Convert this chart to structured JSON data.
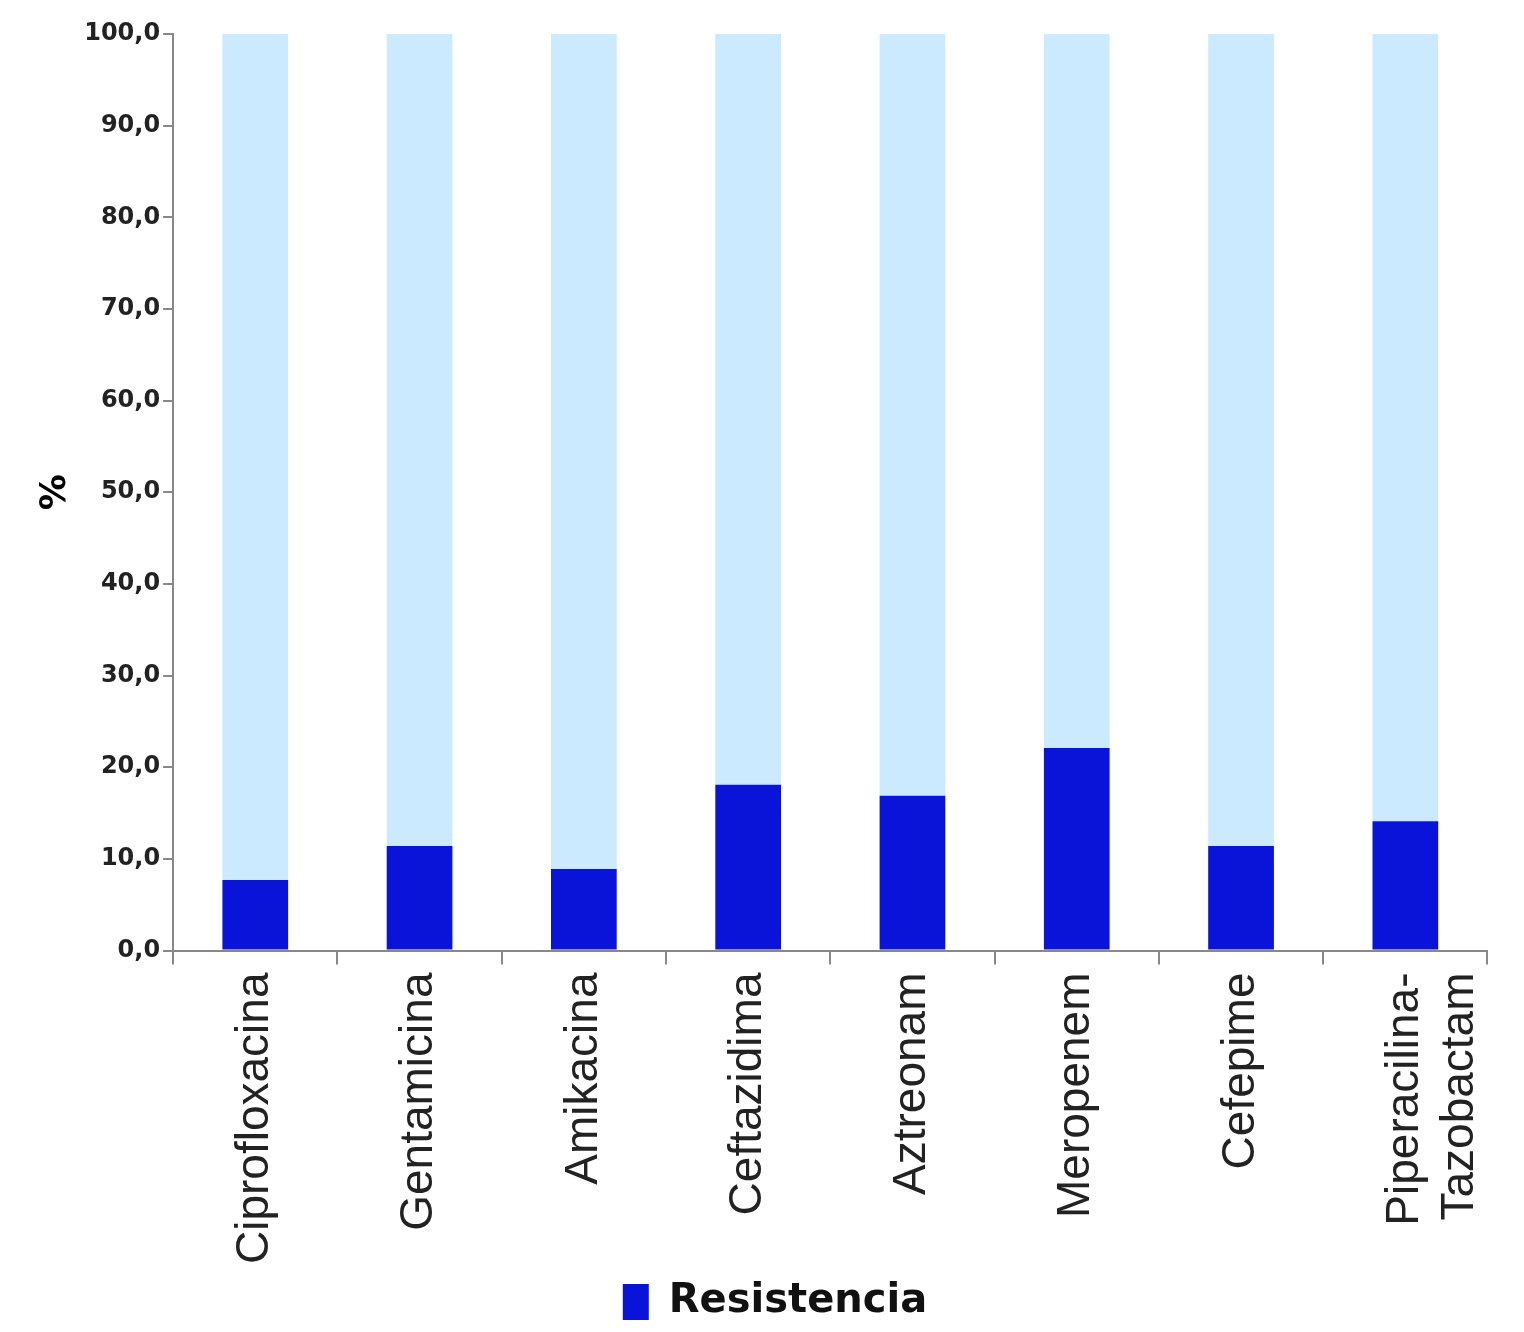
{
  "chart_data": {
    "type": "bar",
    "stacked": true,
    "ylabel": "%",
    "categories": [
      "Ciprofloxacina",
      "Gentamicina",
      "Amikacina",
      "Ceftazidima",
      "Aztreonam",
      "Meropenem",
      "Cefepime",
      "Piperacilina-Tazobactam"
    ],
    "series": [
      {
        "name": "Resistencia",
        "color": "#0a14d8",
        "values": [
          7.7,
          11.4,
          8.9,
          18.1,
          16.9,
          22.1,
          11.4,
          14.1
        ]
      },
      {
        "color": "#cceaff",
        "values": [
          92.3,
          88.6,
          91.1,
          81.9,
          83.1,
          77.9,
          88.6,
          85.9
        ]
      }
    ],
    "ylim": [
      0,
      100
    ],
    "yticks": [
      {
        "value": 0,
        "label": "0,0"
      },
      {
        "value": 10,
        "label": "10,0"
      },
      {
        "value": 20,
        "label": "20,0"
      },
      {
        "value": 30,
        "label": "30,0"
      },
      {
        "value": 40,
        "label": "40,0"
      },
      {
        "value": 50,
        "label": "50,0"
      },
      {
        "value": 60,
        "label": "60,0"
      },
      {
        "value": 70,
        "label": "70,0"
      },
      {
        "value": 80,
        "label": "80,0"
      },
      {
        "value": 90,
        "label": "90,0"
      },
      {
        "value": 100,
        "label": "100,0"
      }
    ],
    "grid": false,
    "legend": "bottom"
  }
}
